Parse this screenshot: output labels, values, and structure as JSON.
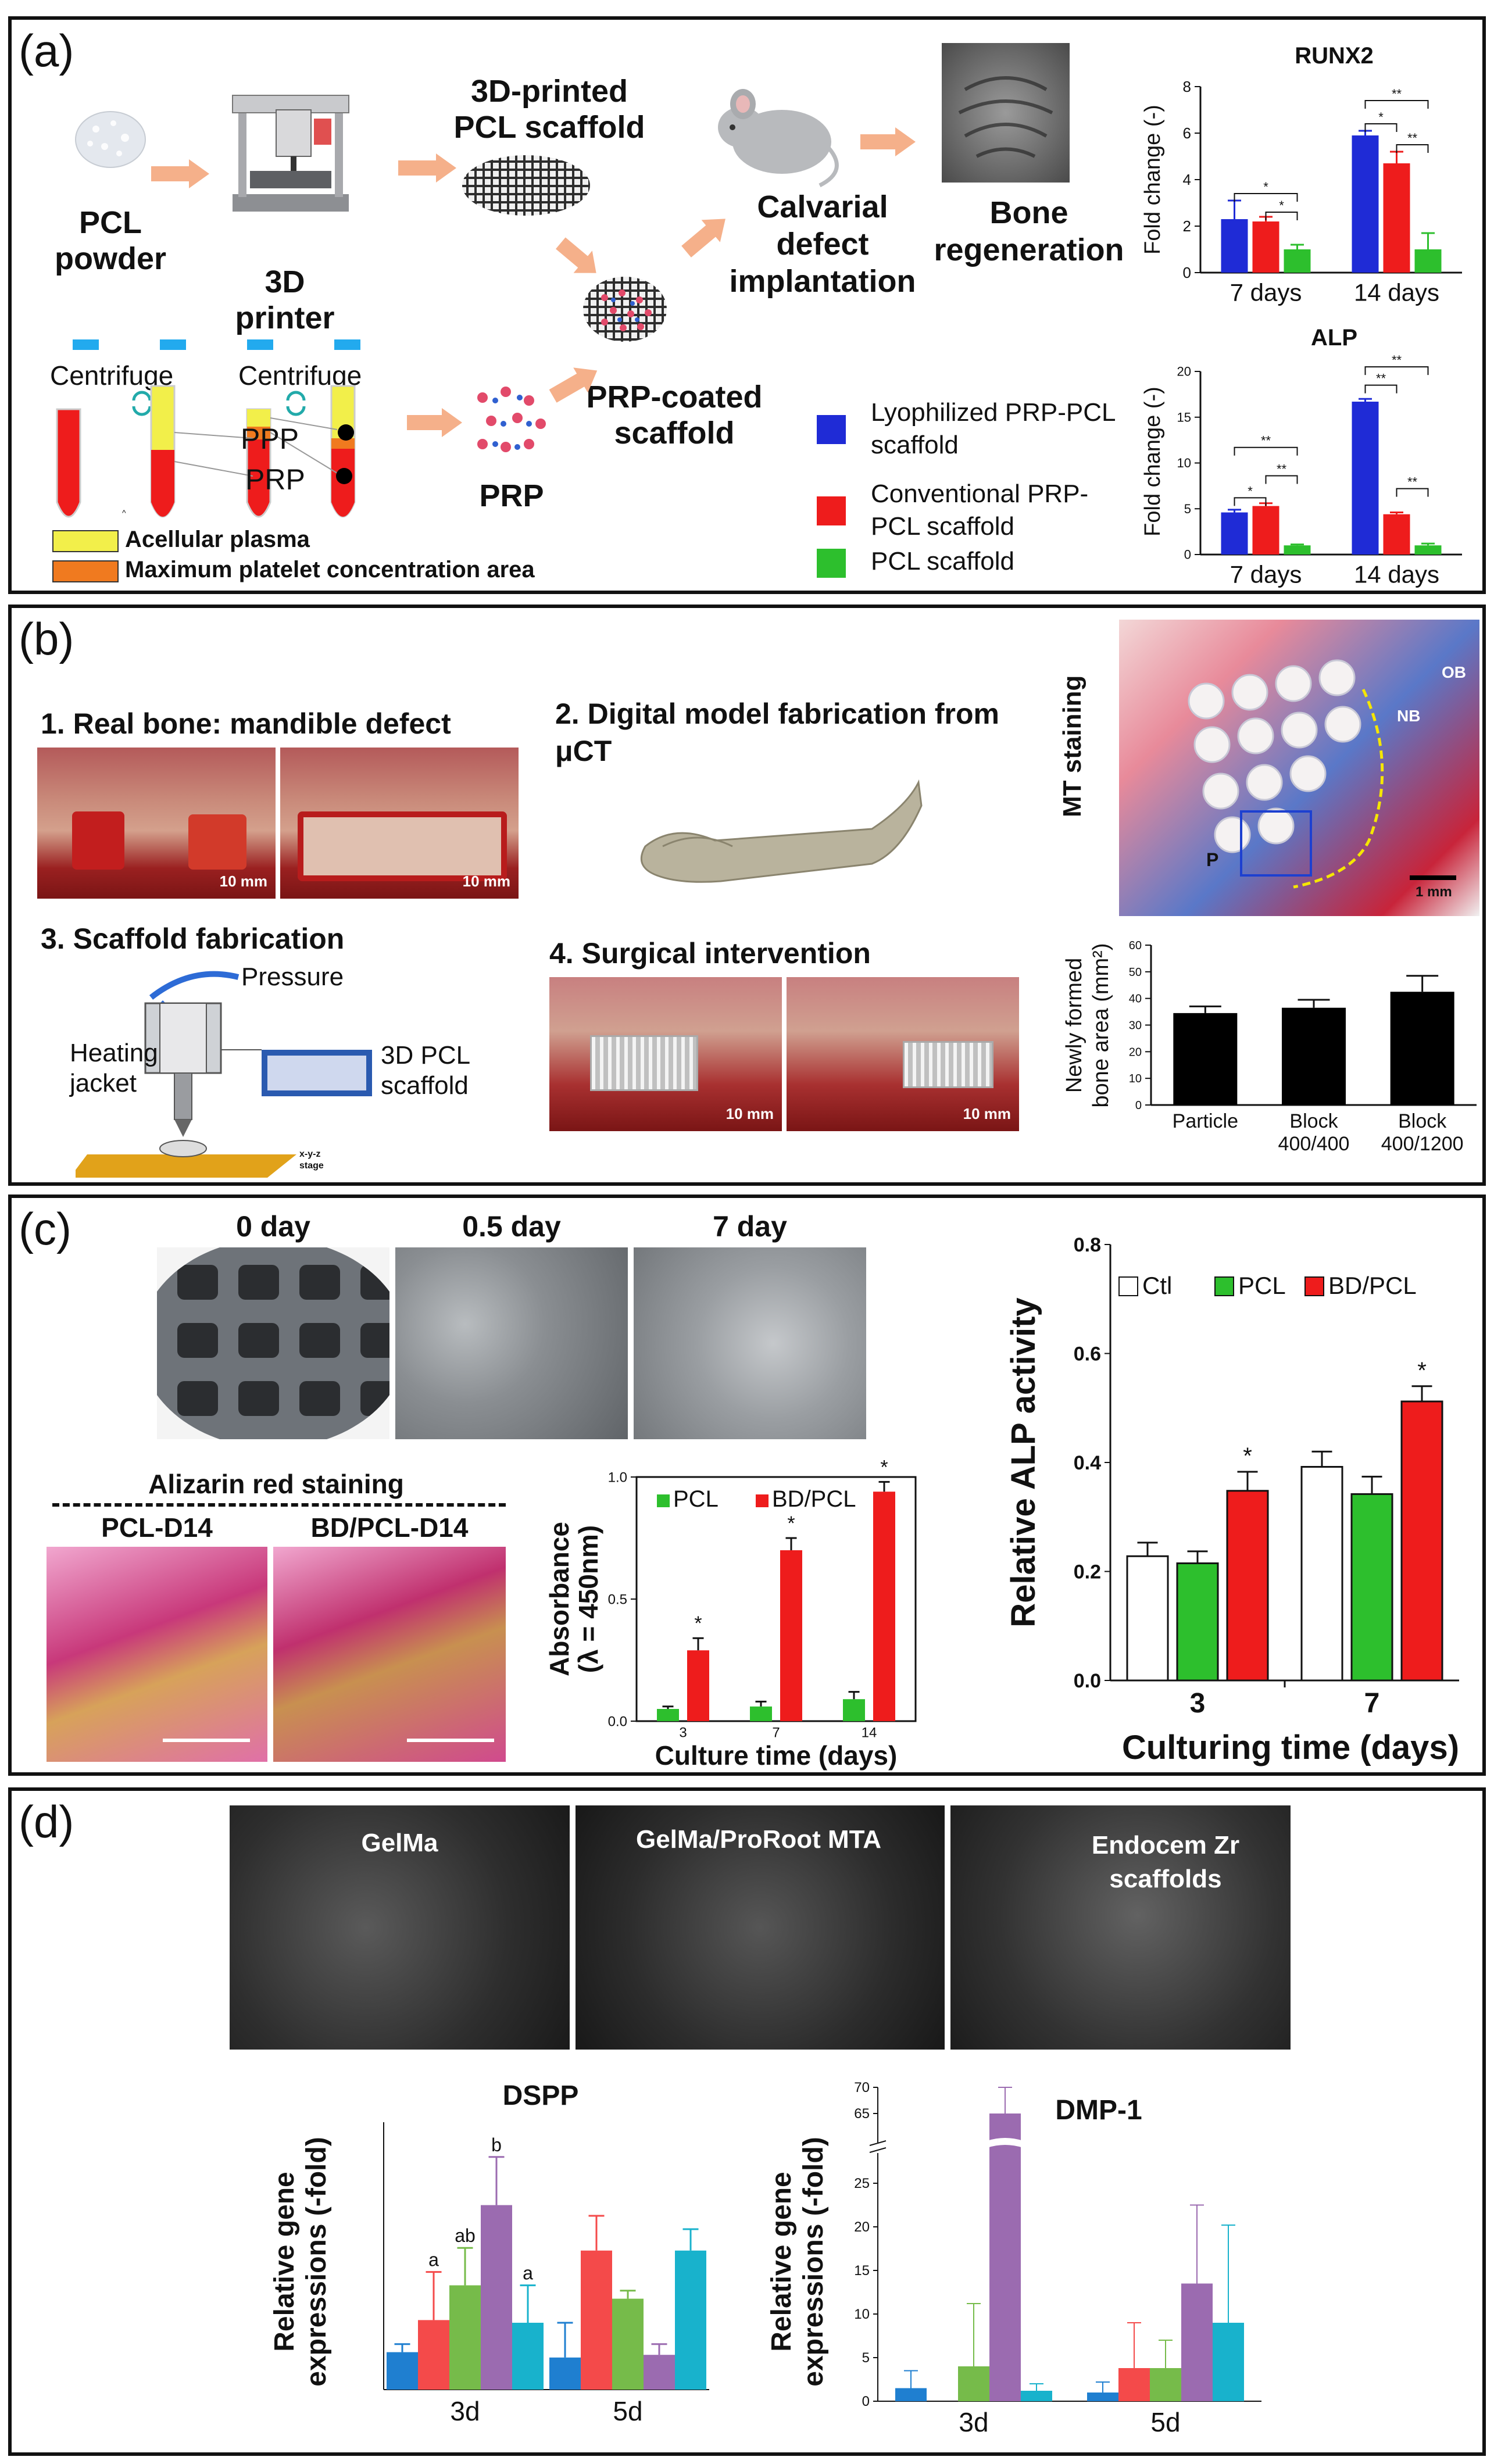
{
  "panels": {
    "a": {
      "label": "(a)",
      "pcl_powder": "PCL powder",
      "printer": "3D printer",
      "scaffold": "3D-printed PCL scaffold",
      "calvarial": "Calvarial defect implantation",
      "bone_regen": "Bone regeneration",
      "centrifuge1": "Centrifuge",
      "centrifuge2": "Centrifuge",
      "ppp": "PPP",
      "prp_tube": "PRP",
      "prp": "PRP",
      "prp_scaffold": "PRP-coated scaffold",
      "key_yellow": "Acellular plasma",
      "key_orange": "Maximum platelet concentration area",
      "tiny_mark": "^",
      "legend": [
        {
          "label": "Lyophilized PRP-PCL scaffold",
          "color": "#1f2bd6"
        },
        {
          "label": "Conventional PRP-PCL scaffold",
          "color": "#ee1c1c"
        },
        {
          "label": "PCL scaffold",
          "color": "#2dbf2d"
        }
      ],
      "colors": {
        "arrow": "#f5b08a",
        "blue": "#1f2bd6",
        "red": "#ee1c1c",
        "green": "#2dbf2d",
        "yellow": "#f2ef4a",
        "orange": "#f07a1f"
      }
    },
    "b": {
      "label": "(b)",
      "step1": "1. Real bone: mandible defect",
      "step2": "2. Digital model  fabrication from μCT",
      "step3": "3. Scaffold fabrication",
      "step4": "4. Surgical intervention",
      "scale1": "10 mm",
      "scale2": "10 mm",
      "scale3": "10 mm",
      "scale4": "10 mm",
      "pressure": "Pressure",
      "heating": "Heating jacket",
      "pcl_scaffold": "3D PCL scaffold",
      "stage": "x-y-z stage",
      "mt_staining": "MT staining",
      "ob": "OB",
      "nb": "NB",
      "p": "P",
      "scale_mt": "1 mm"
    },
    "c": {
      "label": "(c)",
      "day0": "0 day",
      "day05": "0.5 day",
      "day7": "7 day",
      "alizarin": "Alizarin red staining",
      "pcl_d14": "PCL-D14",
      "bd_d14": "BD/PCL-D14"
    },
    "d": {
      "label": "(d)",
      "sem1": "GelMa",
      "sem2": "GelMa/ProRoot MTA",
      "sem3": "Endocem Zr scaffolds"
    }
  },
  "chart_data": [
    {
      "id": "runx2",
      "type": "bar",
      "title": "RUNX2",
      "ylabel": "Fold change (-)",
      "categories": [
        "7 days",
        "14 days"
      ],
      "ylim": [
        0,
        8
      ],
      "yticks": [
        0,
        2,
        4,
        6,
        8
      ],
      "series": [
        {
          "name": "Lyophilized PRP-PCL scaffold",
          "color": "#1f2bd6",
          "values": [
            2.3,
            5.9
          ],
          "errors": [
            0.8,
            0.2
          ]
        },
        {
          "name": "Conventional PRP-PCL scaffold",
          "color": "#ee1c1c",
          "values": [
            2.2,
            4.7
          ],
          "errors": [
            0.2,
            0.5
          ]
        },
        {
          "name": "PCL scaffold",
          "color": "#2dbf2d",
          "values": [
            1.0,
            1.0
          ],
          "errors": [
            0.2,
            0.7
          ]
        }
      ],
      "brackets": [
        {
          "cat": 0,
          "from": 0,
          "to": 2,
          "level": 3.4,
          "label": "*"
        },
        {
          "cat": 0,
          "from": 1,
          "to": 2,
          "level": 2.6,
          "label": "*"
        },
        {
          "cat": 1,
          "from": 0,
          "to": 2,
          "level": 7.4,
          "label": "**"
        },
        {
          "cat": 1,
          "from": 0,
          "to": 1,
          "level": 6.4,
          "label": "*"
        },
        {
          "cat": 1,
          "from": 1,
          "to": 2,
          "level": 5.5,
          "label": "**"
        }
      ]
    },
    {
      "id": "alp_a",
      "type": "bar",
      "title": "ALP",
      "ylabel": "Fold change (-)",
      "categories": [
        "7 days",
        "14 days"
      ],
      "ylim": [
        0,
        20
      ],
      "yticks": [
        0,
        5,
        10,
        15,
        20
      ],
      "series": [
        {
          "name": "Lyophilized PRP-PCL scaffold",
          "color": "#1f2bd6",
          "values": [
            4.6,
            16.7
          ],
          "errors": [
            0.3,
            0.3
          ]
        },
        {
          "name": "Conventional PRP-PCL scaffold",
          "color": "#ee1c1c",
          "values": [
            5.3,
            4.4
          ],
          "errors": [
            0.3,
            0.2
          ]
        },
        {
          "name": "PCL scaffold",
          "color": "#2dbf2d",
          "values": [
            1.0,
            1.0
          ],
          "errors": [
            0.1,
            0.2
          ]
        }
      ],
      "brackets": [
        {
          "cat": 0,
          "from": 0,
          "to": 2,
          "level": 11.7,
          "label": "**"
        },
        {
          "cat": 0,
          "from": 0,
          "to": 1,
          "level": 6.2,
          "label": "*"
        },
        {
          "cat": 0,
          "from": 1,
          "to": 2,
          "level": 8.6,
          "label": "**"
        },
        {
          "cat": 1,
          "from": 0,
          "to": 2,
          "level": 20.5,
          "label": "**"
        },
        {
          "cat": 1,
          "from": 0,
          "to": 1,
          "level": 18.5,
          "label": "**"
        },
        {
          "cat": 1,
          "from": 1,
          "to": 2,
          "level": 7.2,
          "label": "**"
        }
      ]
    },
    {
      "id": "bone_area",
      "type": "bar",
      "title": "",
      "ylabel": "Newly formed bone area (mm²)",
      "categories": [
        "Particle",
        "Block 400/400",
        "Block 400/1200"
      ],
      "ylim": [
        0,
        60
      ],
      "yticks": [
        0,
        10,
        20,
        30,
        40,
        50,
        60
      ],
      "series": [
        {
          "name": "",
          "color": "#000000",
          "values": [
            34.5,
            36.5,
            42.5
          ],
          "errors": [
            2.5,
            3.0,
            6.0
          ]
        }
      ]
    },
    {
      "id": "absorbance",
      "type": "bar",
      "title": "",
      "ylabel": "Absorbance (λ = 450nm)",
      "xlabel": "Culture time (days)",
      "categories": [
        "3",
        "7",
        "14"
      ],
      "ylim": [
        0,
        1.0
      ],
      "yticks": [
        0.0,
        0.5,
        1.0
      ],
      "legend": "top",
      "series": [
        {
          "name": "PCL",
          "color": "#2dbf2d",
          "values": [
            0.05,
            0.06,
            0.09
          ],
          "errors": [
            0.01,
            0.02,
            0.03
          ]
        },
        {
          "name": "BD/PCL",
          "color": "#ee1c1c",
          "values": [
            0.29,
            0.7,
            0.94
          ],
          "errors": [
            0.05,
            0.05,
            0.04
          ]
        }
      ],
      "stars": [
        1,
        1,
        1
      ]
    },
    {
      "id": "alp_c",
      "type": "bar",
      "title": "",
      "ylabel": "Relative ALP activity",
      "xlabel": "Culturing time (days)",
      "categories": [
        "3",
        "7"
      ],
      "ylim": [
        0,
        0.8
      ],
      "yticks": [
        0.0,
        0.2,
        0.4,
        0.6,
        0.8
      ],
      "legend": "top",
      "series": [
        {
          "name": "Ctl",
          "color": "#ffffff",
          "values": [
            0.228,
            0.392
          ],
          "errors": [
            0.025,
            0.028
          ]
        },
        {
          "name": "PCL",
          "color": "#2dbf2d",
          "values": [
            0.215,
            0.342
          ],
          "errors": [
            0.022,
            0.032
          ]
        },
        {
          "name": "BD/PCL",
          "color": "#ee1c1c",
          "values": [
            0.348,
            0.512
          ],
          "errors": [
            0.035,
            0.028
          ]
        }
      ],
      "stars": [
        2,
        2
      ]
    },
    {
      "id": "dspp",
      "type": "bar",
      "title": "DSPP",
      "ylabel": "Relative gene expressions (-fold)",
      "categories": [
        "3d",
        "5d"
      ],
      "ylim": [
        0,
        10
      ],
      "series": [
        {
          "name": "",
          "color": "#1f7fd0",
          "values": [
            1.4,
            1.2
          ],
          "errors": [
            0.3,
            1.3
          ]
        },
        {
          "name": "",
          "color": "#f44a4a",
          "values": [
            2.6,
            5.2
          ],
          "errors": [
            1.8,
            1.3
          ]
        },
        {
          "name": "",
          "color": "#76bb4a",
          "values": [
            3.9,
            3.4
          ],
          "errors": [
            1.4,
            0.3
          ]
        },
        {
          "name": "",
          "color": "#9b6bb0",
          "values": [
            6.9,
            1.3
          ],
          "errors": [
            1.8,
            0.4
          ]
        },
        {
          "name": "",
          "color": "#18b2cc",
          "values": [
            2.5,
            5.2
          ],
          "errors": [
            1.4,
            0.8
          ]
        }
      ],
      "letters": [
        [
          "",
          "a",
          "ab",
          "b",
          "a"
        ],
        [
          "",
          "",
          "",
          "",
          ""
        ]
      ]
    },
    {
      "id": "dmp1",
      "type": "bar",
      "title": "DMP-1",
      "ylabel": "Relative gene expressions (-fold)",
      "categories": [
        "3d",
        "5d"
      ],
      "ylim": [
        0,
        70
      ],
      "yticks": [
        0,
        5,
        10,
        15,
        20,
        25,
        65,
        70
      ],
      "axis_break": [
        28,
        60
      ],
      "series": [
        {
          "name": "",
          "color": "#1f7fd0",
          "values": [
            1.5,
            1.0
          ],
          "errors": [
            2.0,
            1.2
          ]
        },
        {
          "name": "",
          "color": "#f44a4a",
          "values": [
            0,
            3.8
          ],
          "errors": [
            0,
            5.2
          ]
        },
        {
          "name": "",
          "color": "#76bb4a",
          "values": [
            4.0,
            3.8
          ],
          "errors": [
            7.2,
            3.2
          ]
        },
        {
          "name": "",
          "color": "#9b6bb0",
          "values": [
            65,
            13.5
          ],
          "errors": [
            5,
            9.0
          ]
        },
        {
          "name": "",
          "color": "#18b2cc",
          "values": [
            1.2,
            9.0
          ],
          "errors": [
            0.8,
            11.2
          ]
        }
      ]
    }
  ]
}
